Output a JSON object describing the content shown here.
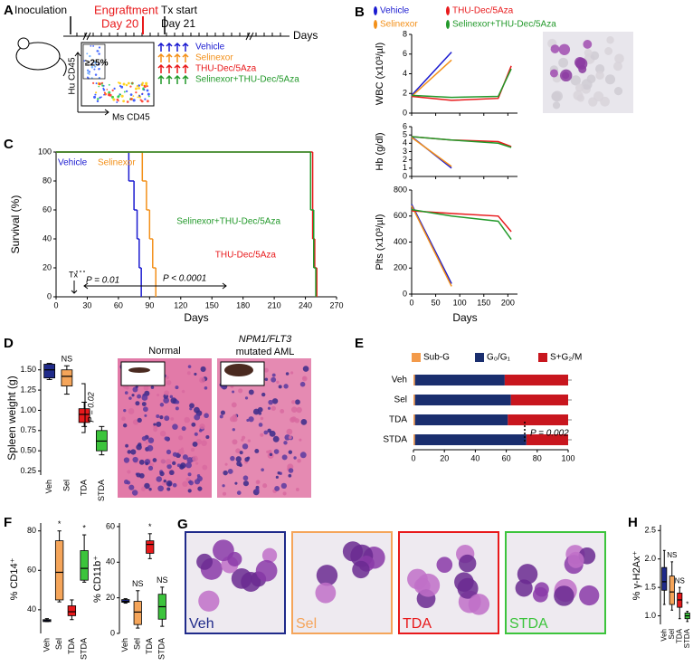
{
  "group_colors": [
    "#1a1ad0",
    "#f39019",
    "#e8191b",
    "#22992a"
  ],
  "box_colors": [
    "#1f2a8a",
    "#f5a55a",
    "#e8191b",
    "#3cc43c"
  ],
  "a": {
    "letter": "A",
    "inoculation": "Inoculation",
    "engraftment": "Engraftment",
    "engraftment_day": "Day 20",
    "tx_start": "Tx start",
    "tx_day": "Day 21",
    "days": "Days",
    "hu_cd45": "Hu CD45",
    "ms_cd45": "Ms CD45",
    "gate": "≥25%",
    "groups": [
      "Vehicle",
      "Selinexor",
      "THU-Dec/5Aza",
      "Selinexor+THU-Dec/5Aza"
    ]
  },
  "b": {
    "letter": "B",
    "legend": [
      "Vehicle",
      "Selinexor",
      "THU-Dec/5Aza",
      "Selinexor+THU-Dec/5Aza"
    ],
    "x": [
      0,
      83,
      180,
      207
    ],
    "xlim": [
      0,
      220
    ],
    "xticks": [
      0,
      50,
      100,
      150,
      200
    ],
    "xlabel": "Days",
    "charts": [
      {
        "ylabel": "WBC (x10³/µl)",
        "ylim": [
          0,
          8
        ],
        "yticks": [
          0,
          2,
          4,
          6,
          8
        ],
        "series": [
          [
            1.8,
            6.2,
            null,
            null
          ],
          [
            1.7,
            5.4,
            null,
            null
          ],
          [
            1.7,
            1.3,
            1.5,
            4.8
          ],
          [
            1.8,
            1.6,
            1.7,
            4.5
          ]
        ]
      },
      {
        "ylabel": "Hb (g/dl)",
        "ylim": [
          0,
          6
        ],
        "yticks": [
          0,
          1,
          2,
          3,
          4,
          5,
          6
        ],
        "series": [
          [
            4.8,
            1.0,
            null,
            null
          ],
          [
            4.7,
            1.2,
            null,
            null
          ],
          [
            4.8,
            4.4,
            4.2,
            3.6
          ],
          [
            4.8,
            4.4,
            4.0,
            3.5
          ]
        ]
      },
      {
        "ylabel": "Plts (x10³/µl)",
        "ylim": [
          0,
          800
        ],
        "yticks": [
          0,
          200,
          400,
          600,
          800
        ],
        "series": [
          [
            690,
            80,
            null,
            null
          ],
          [
            680,
            60,
            null,
            null
          ],
          [
            640,
            620,
            600,
            480
          ],
          [
            650,
            600,
            560,
            420
          ]
        ]
      }
    ]
  },
  "c": {
    "letter": "C",
    "ylabel": "Survival (%)",
    "xlabel": "Days",
    "xlim": [
      0,
      270
    ],
    "xticks": [
      0,
      30,
      60,
      90,
      120,
      150,
      180,
      210,
      240,
      270
    ],
    "ylim": [
      0,
      100
    ],
    "yticks": [
      0,
      20,
      40,
      60,
      80,
      100
    ],
    "series": [
      {
        "name": "Vehicle",
        "x": [
          0,
          70,
          75,
          78,
          80,
          82
        ],
        "values": [
          100,
          80,
          60,
          40,
          20,
          0
        ]
      },
      {
        "name": "Selinexor",
        "x": [
          0,
          83,
          87,
          90,
          93,
          96
        ],
        "values": [
          100,
          80,
          60,
          40,
          20,
          0
        ]
      },
      {
        "name": "THU-Dec/5Aza",
        "x": [
          0,
          247,
          249,
          251
        ],
        "values": [
          100,
          40,
          20,
          0
        ]
      },
      {
        "name": "Selinexor+THU-Dec/5Aza",
        "x": [
          0,
          245,
          248,
          250
        ],
        "values": [
          100,
          60,
          20,
          0
        ]
      }
    ],
    "p1": "P = 0.01",
    "p2": "P < 0.0001",
    "tx": "Tx"
  },
  "d": {
    "letter": "D",
    "ylabel": "Spleen weight (g)",
    "ylim": [
      0.2,
      1.62
    ],
    "yticks": [
      0.25,
      {
        "value": 0.5,
        "label": "0.50"
      },
      0.75,
      {
        "value": 1,
        "label": "1.00"
      },
      1.25,
      {
        "value": 1.5,
        "label": "1.50"
      }
    ],
    "categories": [
      "Veh",
      "Sel",
      "TDA",
      "STDA"
    ],
    "boxes": [
      {
        "min": 1.38,
        "q1": 1.4,
        "median": 1.5,
        "q3": 1.57,
        "max": 1.58
      },
      {
        "min": 1.2,
        "q1": 1.3,
        "median": 1.42,
        "q3": 1.5,
        "max": 1.55
      },
      {
        "min": 0.8,
        "q1": 0.85,
        "median": 0.95,
        "q3": 1.02,
        "max": 1.1
      },
      {
        "min": 0.45,
        "q1": 0.5,
        "median": 0.62,
        "q3": 0.75,
        "max": 0.8
      }
    ],
    "annotations": [
      null,
      "NS",
      null,
      null
    ],
    "p": "P = 0.02",
    "normal": "Normal",
    "aml_gene": "NPM1/FLT3",
    "aml": "mutated AML"
  },
  "e": {
    "letter": "E",
    "categories": [
      "Veh",
      "Sel",
      "TDA",
      "STDA"
    ],
    "xlim": [
      0,
      100
    ],
    "xticks": [
      0,
      20,
      40,
      60,
      80,
      100
    ],
    "series": [
      {
        "name": "Sub-G",
        "color": "#f39a4a",
        "values": [
          1,
          1,
          1,
          1
        ]
      },
      {
        "name": "G₀/G₁",
        "color": "#1a2e6e",
        "values": [
          58,
          62,
          60,
          72
        ]
      },
      {
        "name": "S+G₂/M",
        "color": "#c8161e",
        "values": [
          41,
          37,
          39,
          27
        ]
      }
    ],
    "p": "P = 0.002"
  },
  "f": {
    "letter": "F",
    "categories": [
      "Veh",
      "Sel",
      "TDA",
      "STDA"
    ],
    "charts": [
      {
        "ylabel": "% CD14⁺",
        "ylim": [
          28,
          84
        ],
        "yticks": [
          40,
          60,
          80
        ],
        "boxes": [
          {
            "min": 34,
            "q1": 34,
            "median": 34.5,
            "q3": 35,
            "max": 35.5
          },
          {
            "min": 44,
            "q1": 45,
            "median": 59,
            "q3": 75,
            "max": 80
          },
          {
            "min": 35,
            "q1": 37,
            "median": 39,
            "q3": 42,
            "max": 45
          },
          {
            "min": 54,
            "q1": 55,
            "median": 61,
            "q3": 70,
            "max": 78
          }
        ],
        "annotations": [
          null,
          "*",
          null,
          "*"
        ]
      },
      {
        "ylabel": "% CD11b⁺",
        "ylim": [
          0,
          62
        ],
        "yticks": [
          0,
          20,
          40,
          60
        ],
        "boxes": [
          {
            "min": 17,
            "q1": 17.5,
            "median": 18,
            "q3": 19,
            "max": 19.5
          },
          {
            "min": 3,
            "q1": 5,
            "median": 12,
            "q3": 18,
            "max": 24
          },
          {
            "min": 42,
            "q1": 45,
            "median": 50,
            "q3": 52,
            "max": 56
          },
          {
            "min": 4,
            "q1": 8,
            "median": 15,
            "q3": 22,
            "max": 26
          }
        ],
        "annotations": [
          null,
          "NS",
          "*",
          "NS"
        ]
      }
    ]
  },
  "g": {
    "letter": "G",
    "labels": [
      "Veh",
      "Sel",
      "TDA",
      "STDA"
    ]
  },
  "h": {
    "letter": "H",
    "ylabel": "% γ-H2Ax⁺",
    "ylim": [
      0.85,
      2.6
    ],
    "yticks": [
      {
        "value": 1,
        "label": "1.0"
      },
      1.5,
      {
        "value": 2,
        "label": "2.0"
      },
      2.5
    ],
    "categories": [
      "Veh",
      "Sel",
      "TDA",
      "STDA"
    ],
    "boxes": [
      {
        "min": 1.2,
        "q1": 1.45,
        "median": 1.6,
        "q3": 1.85,
        "max": 2.15
      },
      {
        "min": 1.1,
        "q1": 1.2,
        "median": 1.42,
        "q3": 1.7,
        "max": 1.95
      },
      {
        "min": 0.95,
        "q1": 1.15,
        "median": 1.28,
        "q3": 1.4,
        "max": 1.5
      },
      {
        "min": 0.9,
        "q1": 0.95,
        "median": 1.0,
        "q3": 1.05,
        "max": 1.08
      }
    ],
    "annotations": [
      null,
      "NS",
      "NS",
      "*"
    ]
  }
}
